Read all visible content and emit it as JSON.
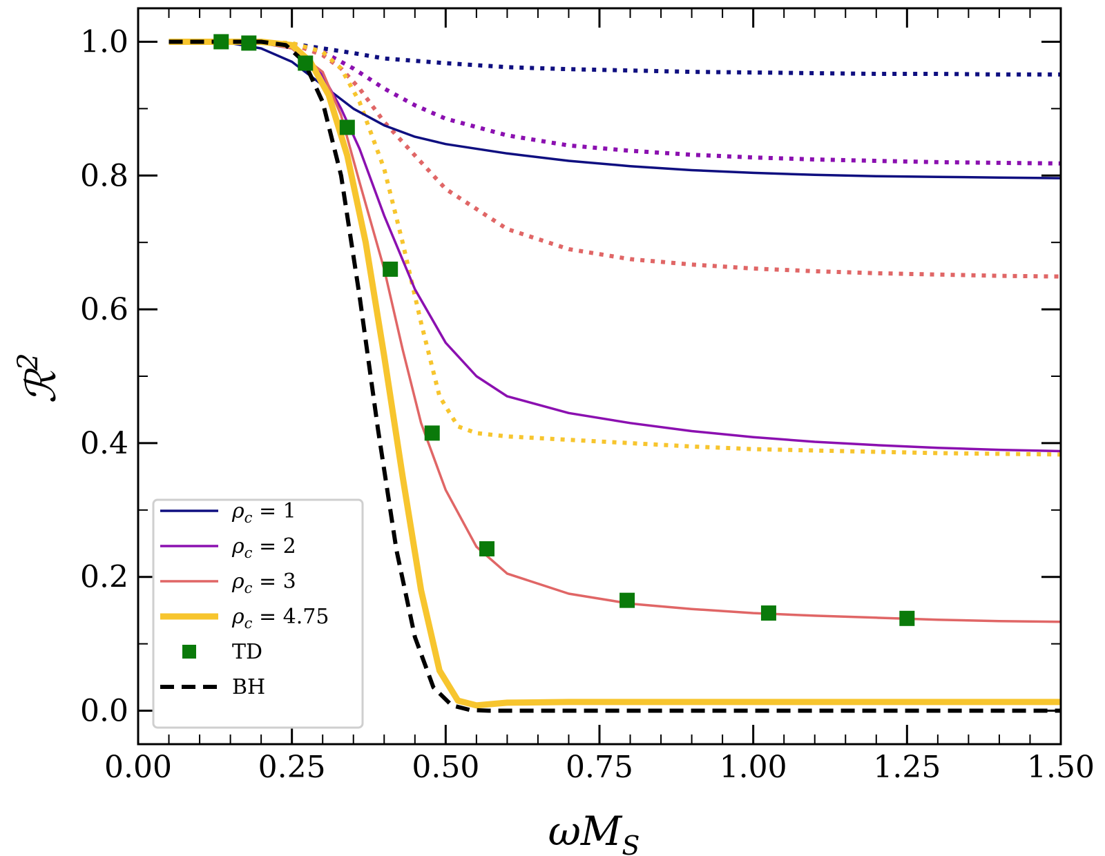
{
  "chart_data": {
    "type": "line",
    "xlabel": "ωM",
    "xlabel_sub": "S",
    "ylabel": "ℛ",
    "ylabel_sup": "2",
    "xlim": [
      0,
      1.5
    ],
    "ylim": [
      -0.05,
      1.05
    ],
    "x_ticks": [
      0,
      0.25,
      0.5,
      0.75,
      1.0,
      1.25,
      1.5
    ],
    "x_tick_labels": [
      "0.00",
      "0.25",
      "0.50",
      "0.75",
      "1.00",
      "1.25",
      "1.50"
    ],
    "y_ticks": [
      0,
      0.2,
      0.4,
      0.6,
      0.8,
      1.0
    ],
    "y_tick_labels": [
      "0.0",
      "0.2",
      "0.4",
      "0.6",
      "0.8",
      "1.0"
    ],
    "grid": false,
    "legend_position": "bottom-left",
    "series": [
      {
        "name": "ρc = 1",
        "legend_value": "1",
        "style": "solid",
        "color": "#0f0f80",
        "x": [
          0.05,
          0.15,
          0.2,
          0.25,
          0.3,
          0.35,
          0.4,
          0.45,
          0.5,
          0.6,
          0.7,
          0.8,
          0.9,
          1.0,
          1.1,
          1.2,
          1.3,
          1.4,
          1.5
        ],
        "y": [
          1.0,
          0.998,
          0.99,
          0.97,
          0.935,
          0.9,
          0.875,
          0.858,
          0.847,
          0.833,
          0.822,
          0.814,
          0.808,
          0.804,
          0.801,
          0.799,
          0.798,
          0.797,
          0.796
        ]
      },
      {
        "name": "ρc = 2",
        "legend_value": "2",
        "style": "solid",
        "color": "#8b10b0",
        "x": [
          0.05,
          0.15,
          0.2,
          0.25,
          0.3,
          0.33,
          0.36,
          0.4,
          0.45,
          0.5,
          0.55,
          0.6,
          0.7,
          0.8,
          0.9,
          1.0,
          1.1,
          1.2,
          1.3,
          1.4,
          1.5
        ],
        "y": [
          1.0,
          1.0,
          0.998,
          0.99,
          0.95,
          0.9,
          0.84,
          0.74,
          0.63,
          0.55,
          0.5,
          0.47,
          0.445,
          0.43,
          0.418,
          0.409,
          0.402,
          0.397,
          0.393,
          0.39,
          0.388
        ]
      },
      {
        "name": "ρc = 3",
        "legend_value": "3",
        "style": "solid",
        "color": "#e06666",
        "x": [
          0.05,
          0.15,
          0.2,
          0.25,
          0.3,
          0.33,
          0.36,
          0.4,
          0.43,
          0.46,
          0.5,
          0.55,
          0.6,
          0.7,
          0.8,
          0.9,
          1.0,
          1.1,
          1.2,
          1.3,
          1.4,
          1.5
        ],
        "y": [
          1.0,
          1.0,
          0.999,
          0.99,
          0.955,
          0.89,
          0.79,
          0.66,
          0.54,
          0.43,
          0.33,
          0.245,
          0.205,
          0.175,
          0.16,
          0.152,
          0.146,
          0.142,
          0.139,
          0.136,
          0.134,
          0.133
        ]
      },
      {
        "name": "ρc = 4.75",
        "legend_value": "4.75",
        "style": "solid-thick",
        "color": "#f7c52e",
        "x": [
          0.05,
          0.15,
          0.2,
          0.25,
          0.28,
          0.31,
          0.34,
          0.37,
          0.4,
          0.43,
          0.46,
          0.49,
          0.52,
          0.55,
          0.6,
          0.7,
          0.8,
          0.9,
          1.0,
          1.1,
          1.2,
          1.3,
          1.4,
          1.5
        ],
        "y": [
          1.0,
          1.0,
          1.0,
          0.995,
          0.97,
          0.92,
          0.83,
          0.7,
          0.53,
          0.35,
          0.18,
          0.06,
          0.015,
          0.008,
          0.012,
          0.013,
          0.013,
          0.013,
          0.013,
          0.013,
          0.013,
          0.013,
          0.013,
          0.013
        ]
      },
      {
        "name": "",
        "style": "dotted",
        "color": "#0f0f80",
        "x": [
          0.05,
          0.2,
          0.25,
          0.3,
          0.35,
          0.4,
          0.5,
          0.6,
          0.7,
          0.8,
          0.9,
          1.0,
          1.1,
          1.2,
          1.3,
          1.4,
          1.5
        ],
        "y": [
          1.0,
          1.0,
          0.997,
          0.99,
          0.983,
          0.975,
          0.968,
          0.962,
          0.959,
          0.957,
          0.955,
          0.954,
          0.953,
          0.952,
          0.952,
          0.951,
          0.951
        ]
      },
      {
        "name": "",
        "style": "dotted",
        "color": "#8b10b0",
        "x": [
          0.05,
          0.2,
          0.25,
          0.3,
          0.35,
          0.4,
          0.45,
          0.5,
          0.6,
          0.7,
          0.8,
          0.9,
          1.0,
          1.1,
          1.2,
          1.3,
          1.4,
          1.5
        ],
        "y": [
          1.0,
          1.0,
          0.997,
          0.985,
          0.96,
          0.93,
          0.905,
          0.885,
          0.86,
          0.845,
          0.837,
          0.831,
          0.827,
          0.824,
          0.822,
          0.82,
          0.819,
          0.818
        ]
      },
      {
        "name": "",
        "style": "dotted",
        "color": "#e06666",
        "x": [
          0.05,
          0.2,
          0.25,
          0.3,
          0.33,
          0.36,
          0.4,
          0.45,
          0.5,
          0.6,
          0.7,
          0.8,
          0.9,
          1.0,
          1.1,
          1.2,
          1.3,
          1.4,
          1.5
        ],
        "y": [
          1.0,
          1.0,
          0.997,
          0.98,
          0.96,
          0.93,
          0.88,
          0.83,
          0.78,
          0.72,
          0.69,
          0.675,
          0.667,
          0.661,
          0.657,
          0.654,
          0.652,
          0.65,
          0.649
        ]
      },
      {
        "name": "",
        "style": "dotted",
        "color": "#f7c52e",
        "x": [
          0.05,
          0.2,
          0.25,
          0.3,
          0.33,
          0.36,
          0.4,
          0.43,
          0.46,
          0.49,
          0.52,
          0.55,
          0.6,
          0.7,
          0.8,
          0.9,
          1.0,
          1.1,
          1.2,
          1.3,
          1.4,
          1.5
        ],
        "y": [
          1.0,
          1.0,
          0.998,
          0.985,
          0.96,
          0.91,
          0.81,
          0.7,
          0.58,
          0.47,
          0.425,
          0.415,
          0.41,
          0.405,
          0.4,
          0.395,
          0.391,
          0.389,
          0.387,
          0.385,
          0.384,
          0.383
        ]
      },
      {
        "name": "TD",
        "style": "markers",
        "color": "#0a7a0a",
        "x": [
          0.135,
          0.18,
          0.272,
          0.34,
          0.41,
          0.478,
          0.567,
          0.795,
          1.025,
          1.25
        ],
        "y": [
          1.0,
          0.998,
          0.968,
          0.872,
          0.66,
          0.415,
          0.242,
          0.165,
          0.146,
          0.138
        ]
      },
      {
        "name": "BH",
        "style": "dashed",
        "color": "#000000",
        "x": [
          0.05,
          0.15,
          0.2,
          0.24,
          0.27,
          0.3,
          0.33,
          0.36,
          0.39,
          0.42,
          0.45,
          0.48,
          0.51,
          0.54,
          0.57,
          0.6,
          0.7,
          0.8,
          0.9,
          1.0,
          1.2,
          1.5
        ],
        "y": [
          1.0,
          1.0,
          1.0,
          0.995,
          0.97,
          0.91,
          0.8,
          0.62,
          0.42,
          0.24,
          0.11,
          0.035,
          0.008,
          0.001,
          0.0,
          0.0,
          0.0,
          0.0,
          0.0,
          0.0,
          0.0,
          0.0
        ]
      }
    ]
  }
}
